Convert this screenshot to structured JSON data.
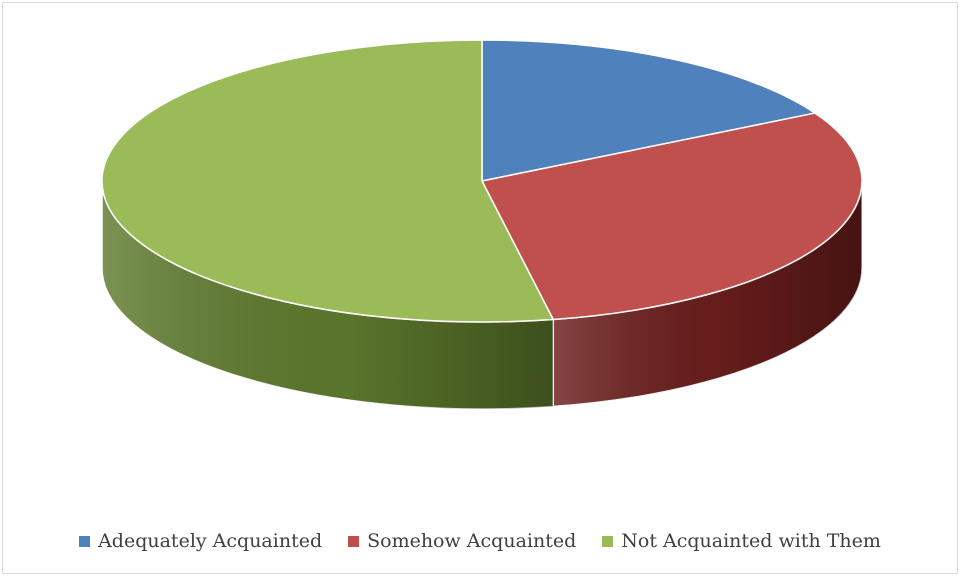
{
  "chart_data": {
    "type": "pie",
    "style": "3d",
    "title": "",
    "legend_position": "bottom",
    "series": [
      {
        "name": "Adequately Acquainted",
        "value": 17,
        "color": "#4F81BD",
        "side_color": "#2C4D75"
      },
      {
        "name": "Somehow Acquainted",
        "value": 30,
        "color": "#C0504D",
        "side_color": "#6B1E1C"
      },
      {
        "name": "Not Acquainted with Them",
        "value": 53,
        "color": "#9BBB59",
        "side_color": "#5E7A2D"
      }
    ]
  }
}
